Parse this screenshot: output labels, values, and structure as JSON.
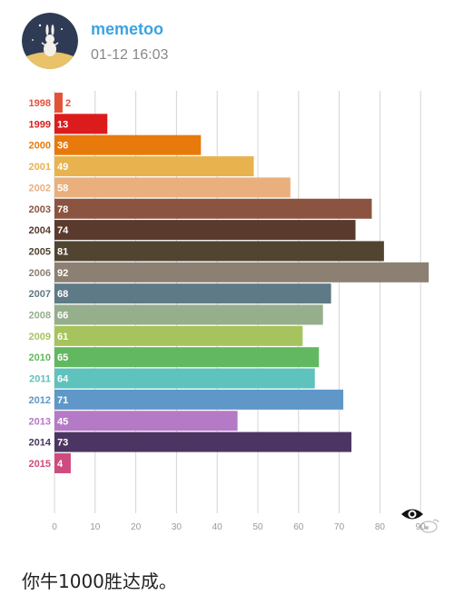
{
  "post": {
    "username": "memetoo",
    "timestamp": "01-12 16:03",
    "caption": "你牛1000胜达成。"
  },
  "icons": {
    "avatar": "rabbit-avatar-icon",
    "eye": "eye-icon",
    "watermark": "weibo-watermark-icon"
  },
  "chart_data": {
    "type": "bar",
    "orientation": "horizontal",
    "title": "",
    "xlabel": "",
    "ylabel": "",
    "xlim": [
      0,
      92
    ],
    "x_ticks": [
      "0",
      "10",
      "20",
      "30",
      "40",
      "50",
      "60",
      "70",
      "80",
      "90"
    ],
    "grid": true,
    "categories": [
      "1998",
      "1999",
      "2000",
      "2001",
      "2002",
      "2003",
      "2004",
      "2005",
      "2006",
      "2007",
      "2008",
      "2009",
      "2010",
      "2011",
      "2012",
      "2013",
      "2014",
      "2015"
    ],
    "values": [
      2,
      13,
      36,
      49,
      58,
      78,
      74,
      81,
      92,
      68,
      66,
      61,
      65,
      64,
      71,
      45,
      73,
      4
    ],
    "value_labels": [
      "2",
      "13",
      "36",
      "49",
      "58",
      "78",
      "74",
      "81",
      "92",
      "68",
      "66",
      "61",
      "65",
      "64",
      "71",
      "45",
      "73",
      "4"
    ],
    "colors": [
      "#e5523a",
      "#dc1c1c",
      "#e87a0c",
      "#e8b34f",
      "#e9b07e",
      "#8a5440",
      "#5b3a2e",
      "#514430",
      "#8c8072",
      "#5e7a86",
      "#95ae8c",
      "#a7c35d",
      "#62b860",
      "#5ec2bd",
      "#5f97c8",
      "#b57ac6",
      "#4c3562",
      "#cf4a7e"
    ],
    "label_colors": [
      "#e5523a",
      "#dc1c1c",
      "#e87a0c",
      "#e8b34f",
      "#e9b07e",
      "#8a5440",
      "#5b3a2e",
      "#514430",
      "#8c8072",
      "#5e7a86",
      "#95ae8c",
      "#a7c35d",
      "#62b860",
      "#5ec2bd",
      "#5f97c8",
      "#b57ac6",
      "#4c3562",
      "#cf4a7e"
    ]
  }
}
